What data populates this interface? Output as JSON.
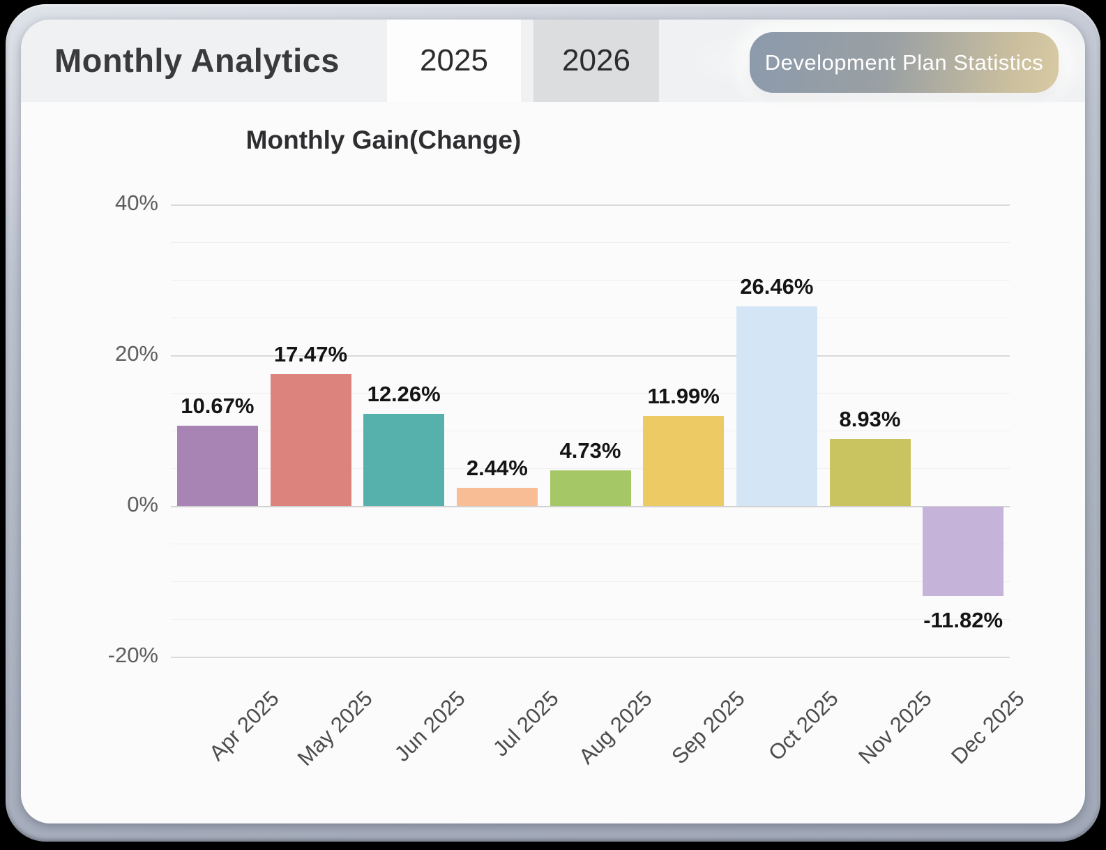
{
  "header": {
    "title": "Monthly Analytics",
    "tabs": [
      {
        "label": "2025",
        "active": true
      },
      {
        "label": "2026",
        "active": false
      }
    ],
    "button_label": "Development Plan Statistics"
  },
  "chart_data": {
    "type": "bar",
    "title": "Monthly Gain(Change)",
    "categories": [
      "Apr 2025",
      "May 2025",
      "Jun 2025",
      "Jul 2025",
      "Aug 2025",
      "Sep 2025",
      "Oct 2025",
      "Nov 2025",
      "Dec 2025"
    ],
    "values": [
      10.67,
      17.47,
      12.26,
      2.44,
      4.73,
      11.99,
      26.46,
      8.93,
      -11.82
    ],
    "value_labels": [
      "10.67%",
      "17.47%",
      "12.26%",
      "2.44%",
      "4.73%",
      "11.99%",
      "26.46%",
      "8.93%",
      "-11.82%"
    ],
    "bar_colors": [
      "#a884b4",
      "#dd837e",
      "#56b1ac",
      "#f8bd95",
      "#a5c765",
      "#eeca65",
      "#d4e6f5",
      "#c9c360",
      "#c6b3d9"
    ],
    "yticks": [
      {
        "value": 40,
        "label": "40%"
      },
      {
        "value": 20,
        "label": "20%"
      },
      {
        "value": 0,
        "label": "0%"
      },
      {
        "value": -20,
        "label": "-20%"
      }
    ],
    "minor_gridlines": [
      35,
      30,
      25,
      15,
      10,
      5,
      -5,
      -10,
      -15
    ],
    "ylim": [
      -20,
      40
    ],
    "xlabel": "",
    "ylabel": "",
    "grid": true,
    "legend": false,
    "accent_colors": {
      "button_left": "#8c9aac",
      "button_right": "#d8caa3",
      "header_band": "#f0f1f2"
    }
  }
}
